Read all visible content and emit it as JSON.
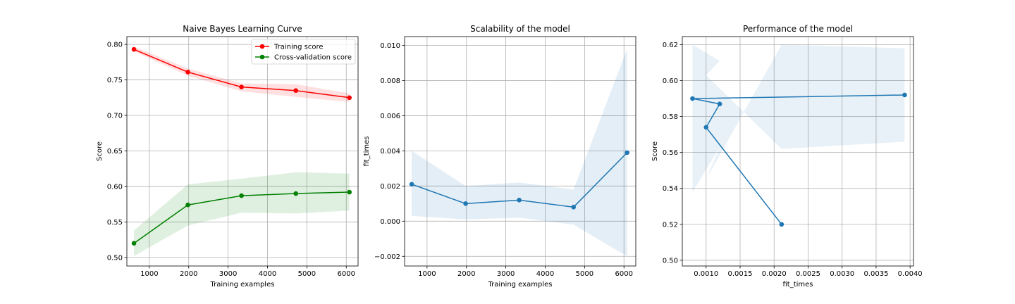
{
  "figure": {
    "background": "#ffffff",
    "grid_color": "#b0b0b0",
    "spine_color": "#000000"
  },
  "chart_data": [
    {
      "type": "line",
      "title": "Naive Bayes Learning Curve",
      "xlabel": "Training examples",
      "ylabel": "Score",
      "xlim": [
        430,
        6300
      ],
      "ylim": [
        0.488,
        0.811
      ],
      "xticks": [
        1000,
        2000,
        3000,
        4000,
        5000,
        6000
      ],
      "xtick_labels": [
        "1000",
        "2000",
        "3000",
        "4000",
        "5000",
        "6000"
      ],
      "yticks": [
        0.5,
        0.55,
        0.6,
        0.65,
        0.7,
        0.75,
        0.8
      ],
      "ytick_labels": [
        "0.50",
        "0.55",
        "0.60",
        "0.65",
        "0.70",
        "0.75",
        "0.80"
      ],
      "grid": true,
      "legend": "upper-right",
      "series": [
        {
          "name": "Training score",
          "color": "#ff0000",
          "x": [
            610,
            1980,
            3340,
            4720,
            6080
          ],
          "y": [
            0.793,
            0.761,
            0.74,
            0.735,
            0.725
          ],
          "lower": [
            0.79,
            0.756,
            0.734,
            0.726,
            0.719
          ],
          "upper": [
            0.797,
            0.766,
            0.745,
            0.744,
            0.731
          ]
        },
        {
          "name": "Cross-validation score",
          "color": "#008000",
          "x": [
            610,
            1980,
            3340,
            4720,
            6080
          ],
          "y": [
            0.52,
            0.574,
            0.587,
            0.59,
            0.592
          ],
          "lower": [
            0.502,
            0.545,
            0.563,
            0.562,
            0.566
          ],
          "upper": [
            0.538,
            0.603,
            0.611,
            0.62,
            0.618
          ]
        }
      ]
    },
    {
      "type": "line",
      "title": "Scalability of the model",
      "xlabel": "Training examples",
      "ylabel": "fit_times",
      "xlim": [
        430,
        6300
      ],
      "ylim": [
        -0.00255,
        0.0105
      ],
      "xticks": [
        1000,
        2000,
        3000,
        4000,
        5000,
        6000
      ],
      "xtick_labels": [
        "1000",
        "2000",
        "3000",
        "4000",
        "5000",
        "6000"
      ],
      "yticks": [
        -0.002,
        0.0,
        0.002,
        0.004,
        0.006,
        0.008,
        0.01
      ],
      "ytick_labels": [
        "−0.002",
        "0.000",
        "0.002",
        "0.004",
        "0.006",
        "0.008",
        "0.010"
      ],
      "grid": true,
      "series": [
        {
          "color": "#1f77b4",
          "x": [
            610,
            1980,
            3340,
            4720,
            6080
          ],
          "y": [
            0.0021,
            0.001,
            0.0012,
            0.0008,
            0.0039
          ],
          "lower": [
            0.0003,
            0.0001,
            0.0002,
            -0.0002,
            -0.002
          ],
          "upper": [
            0.004,
            0.002,
            0.0022,
            0.0018,
            0.0098
          ]
        }
      ]
    },
    {
      "type": "line",
      "title": "Performance of the model",
      "xlabel": "fit_times",
      "ylabel": "Score",
      "xlim": [
        0.00065,
        0.00405
      ],
      "ylim": [
        0.4968,
        0.6245
      ],
      "xticks": [
        0.001,
        0.0015,
        0.002,
        0.0025,
        0.003,
        0.0035,
        0.004
      ],
      "xtick_labels": [
        "0.0010",
        "0.0015",
        "0.0020",
        "0.0025",
        "0.0030",
        "0.0035",
        "0.0040"
      ],
      "yticks": [
        0.5,
        0.52,
        0.54,
        0.56,
        0.58,
        0.6,
        0.62
      ],
      "ytick_labels": [
        "0.50",
        "0.52",
        "0.54",
        "0.56",
        "0.58",
        "0.60",
        "0.62"
      ],
      "grid": true,
      "series": [
        {
          "color": "#1f77b4",
          "x": [
            0.00211,
            0.001,
            0.0012,
            0.0008,
            0.00392
          ],
          "y": [
            0.52,
            0.574,
            0.587,
            0.59,
            0.592
          ]
        }
      ],
      "band": {
        "color": "#1f77b4",
        "x": [
          0.0008,
          0.0012,
          0.001,
          0.00211,
          0.00392,
          0.00392,
          0.00211,
          0.001,
          0.0012,
          0.0008
        ],
        "y": [
          0.62,
          0.611,
          0.603,
          0.562,
          0.566,
          0.618,
          0.62,
          0.545,
          0.563,
          0.538
        ]
      }
    }
  ]
}
